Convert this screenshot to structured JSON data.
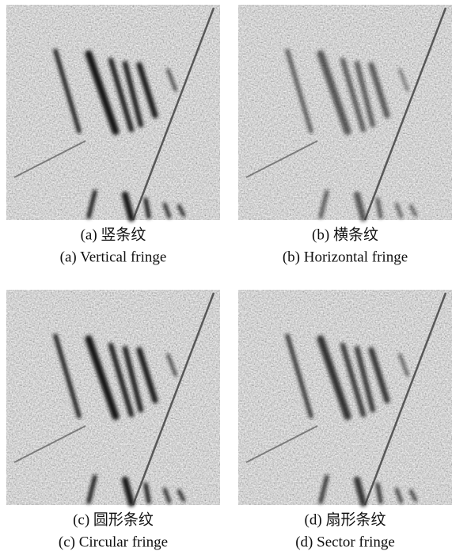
{
  "panels": [
    {
      "caption_cn": "(a) 竖条纹",
      "caption_en": "(a) Vertical fringe"
    },
    {
      "caption_cn": "(b) 横条纹",
      "caption_en": "(b) Horizontal fringe"
    },
    {
      "caption_cn": "(c) 圆形条纹",
      "caption_en": "(c) Circular fringe"
    },
    {
      "caption_cn": "(d) 扇形条纹",
      "caption_en": "(d) Sector fringe"
    }
  ]
}
